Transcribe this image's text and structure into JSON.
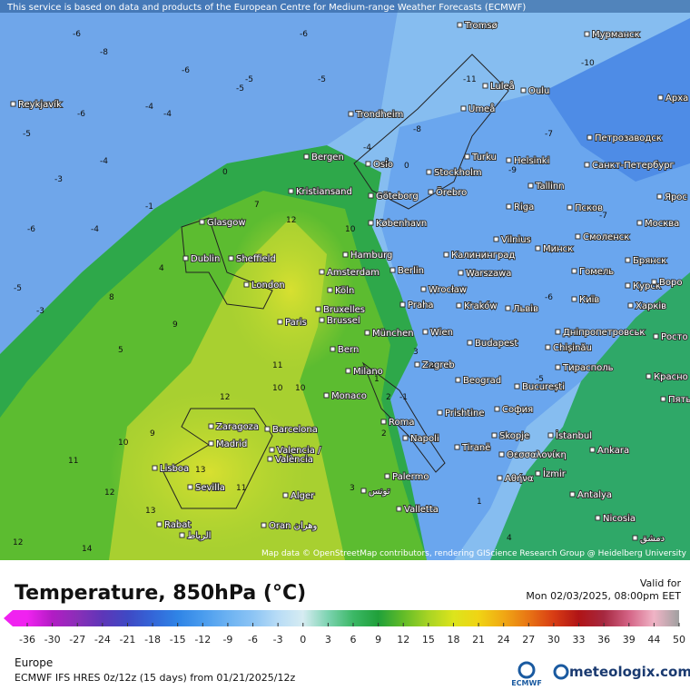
{
  "header": {
    "notice": "This service is based on data and products of the European Centre for Medium-range Weather Forecasts (ECMWF)"
  },
  "map": {
    "cities": [
      "Reykjavík",
      "Tromsø",
      "Мурманск",
      "Luleå",
      "Oulu",
      "Арха",
      "Trondheim",
      "Umeå",
      "Петрозаводск",
      "Bergen",
      "Oslo",
      "Stockholm",
      "Turku",
      "Helsinki",
      "Санкт-Петербург",
      "Kristiansand",
      "Göteborg",
      "Örebro",
      "Tallinn",
      "Riga",
      "Псков",
      "Ярос",
      "Glasgow",
      "København",
      "Москва",
      "Vilnius",
      "Минск",
      "Смоленск",
      "Dublin",
      "Sheffield",
      "Hamburg",
      "Калининград",
      "Брянск",
      "Amsterdam",
      "Berlin",
      "Warszawa",
      "Гомель",
      "London",
      "Köln",
      "Wrocław",
      "Курск",
      "Воро",
      "Bruxelles",
      "Brussel",
      "Praha",
      "Kraków",
      "Львів",
      "Київ",
      "Харків",
      "Paris",
      "München",
      "Wien",
      "Дніпропетровськ",
      "Bern",
      "Budapest",
      "Chișinău",
      "Росто",
      "Milano",
      "Zagreb",
      "Тирасполь",
      "Красно",
      "Beograd",
      "București",
      "Monaco",
      "Пять",
      "Roma",
      "Prishtine",
      "София",
      "Zaragoza",
      "Barcelona",
      "Madrid",
      "Napoli",
      "Tiranë",
      "Skopje",
      "İstanbul",
      "Ankara",
      "Valencia /",
      "València",
      "Θεσσαλονίκη",
      "Lisboa",
      "İzmir",
      "Αθήνα",
      "Palermo",
      "Sevilla",
      "Alger",
      "تونس",
      "Antalya",
      "Valletta",
      "Rabat",
      "الرباط",
      "Oran وهران",
      "Nicosia",
      "دمشق"
    ],
    "contour_labels": [
      -6,
      -8,
      -6,
      -5,
      -5,
      -4,
      -4,
      -6,
      -5,
      -4,
      -3,
      -6,
      -5,
      -1,
      0,
      -3,
      -4,
      -6,
      -5,
      4,
      7,
      12,
      10,
      8,
      9,
      5,
      11,
      10,
      12,
      13,
      9,
      11,
      10,
      12,
      13,
      11,
      14,
      12,
      10,
      3,
      2,
      1,
      4,
      -11,
      -10,
      -9,
      -7,
      -8,
      -7,
      -6,
      -5,
      -2,
      -1,
      -3,
      -4,
      0,
      1,
      2,
      3
    ],
    "attribution": "Map data © OpenStreetMap contributors, rendering GIScience Research Group @ Heidelberg University"
  },
  "legend": {
    "title": "Temperature, 850hPa (°C)",
    "valid_label": "Valid for",
    "valid_time": "Mon 02/03/2025, 08:00pm EET",
    "ticks": [
      -36,
      -30,
      -27,
      -24,
      -21,
      -18,
      -15,
      -12,
      -9,
      -6,
      -3,
      0,
      3,
      6,
      9,
      12,
      15,
      18,
      21,
      24,
      27,
      30,
      33,
      36,
      39,
      44,
      50
    ],
    "colors": [
      "#f022f0",
      "#b21cc4",
      "#8a2fb8",
      "#5e36b8",
      "#3f49c4",
      "#3466d8",
      "#2f84e6",
      "#4a9cee",
      "#6cb2f2",
      "#8cc4f4",
      "#b8dcf6",
      "#d6ecf2",
      "#7cd3b0",
      "#3cb866",
      "#20a03a",
      "#62bc28",
      "#a8d424",
      "#dce41c",
      "#f0d414",
      "#f0a814",
      "#e87414",
      "#d83c14",
      "#b01416",
      "#a62840",
      "#d46486",
      "#f0b4c6",
      "#a0a0a0"
    ]
  },
  "footer": {
    "region": "Europe",
    "model": "ECMWF IFS HRES 0z/12z (15 days)  from  01/21/2025/12z",
    "logo_left": "ECMWF",
    "logo_right": "meteologix.com"
  }
}
